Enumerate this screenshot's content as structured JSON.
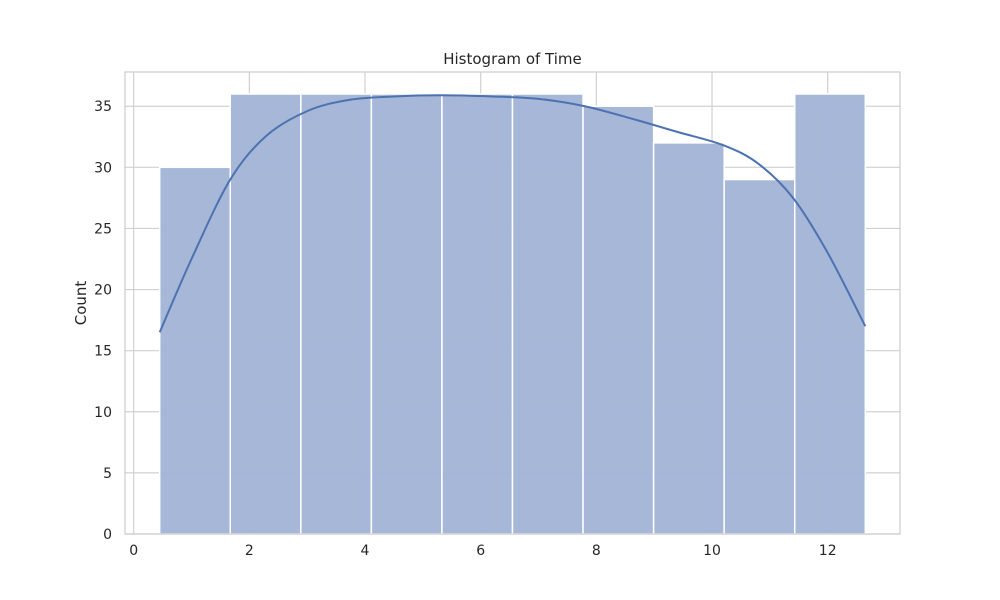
{
  "chart_data": {
    "type": "bar",
    "title": "Histogram of Time",
    "xlabel": "",
    "ylabel": "Count",
    "xlim": [
      -0.15,
      13.25
    ],
    "ylim": [
      0,
      37.8
    ],
    "xticks": [
      0,
      2,
      4,
      6,
      8,
      10,
      12
    ],
    "yticks": [
      0,
      5,
      10,
      15,
      20,
      25,
      30,
      35
    ],
    "grid": true,
    "bins": [
      {
        "x0": 0.45,
        "x1": 1.67,
        "count": 30
      },
      {
        "x0": 1.67,
        "x1": 2.89,
        "count": 36
      },
      {
        "x0": 2.89,
        "x1": 4.11,
        "count": 36
      },
      {
        "x0": 4.11,
        "x1": 5.33,
        "count": 36
      },
      {
        "x0": 5.33,
        "x1": 6.55,
        "count": 36
      },
      {
        "x0": 6.55,
        "x1": 7.77,
        "count": 36
      },
      {
        "x0": 7.77,
        "x1": 8.99,
        "count": 35
      },
      {
        "x0": 8.99,
        "x1": 10.21,
        "count": 32
      },
      {
        "x0": 10.21,
        "x1": 11.43,
        "count": 29
      },
      {
        "x0": 11.43,
        "x1": 12.65,
        "count": 36
      }
    ],
    "kde_curve": {
      "x": [
        0.45,
        1.0,
        1.67,
        2.3,
        3.0,
        3.7,
        4.5,
        5.3,
        6.2,
        7.0,
        7.8,
        8.6,
        9.4,
        10.2,
        10.8,
        11.4,
        12.0,
        12.65
      ],
      "y": [
        16.5,
        22.5,
        29.0,
        32.6,
        34.6,
        35.5,
        35.8,
        35.9,
        35.8,
        35.6,
        35.0,
        34.0,
        32.9,
        31.8,
        30.3,
        27.5,
        23.0,
        17.0
      ]
    },
    "colors": {
      "bar_fill": "#a4b6d7",
      "bar_edge": "#ffffff",
      "kde_line": "#4c72b0",
      "grid": "#d0d0d0",
      "frame": "#cccccc",
      "text": "#262626"
    }
  }
}
